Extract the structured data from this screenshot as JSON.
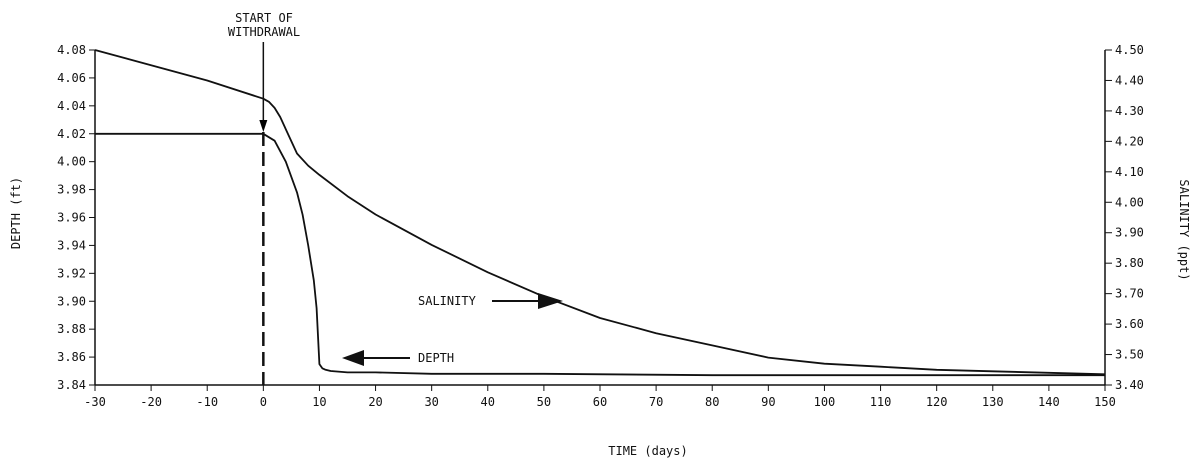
{
  "chart_data": {
    "type": "line",
    "title": "",
    "xlabel": "TIME (days)",
    "ylabel": "DEPTH (ft)",
    "y2label": "SALINITY (ppt)",
    "xlim": [
      -30,
      150
    ],
    "ylim": [
      3.84,
      4.08
    ],
    "y2lim": [
      3.4,
      4.5
    ],
    "x_ticks": [
      -30,
      -20,
      -10,
      0,
      10,
      20,
      30,
      40,
      50,
      60,
      70,
      80,
      90,
      100,
      110,
      120,
      130,
      140,
      150
    ],
    "y_ticks": [
      "3.84",
      "3.86",
      "3.88",
      "3.90",
      "3.92",
      "3.94",
      "3.96",
      "3.98",
      "4.00",
      "4.02",
      "4.04",
      "4.06",
      "4.08"
    ],
    "y2_ticks": [
      "3.40",
      "3.50",
      "3.60",
      "3.70",
      "3.80",
      "3.90",
      "4.00",
      "4.10",
      "4.20",
      "4.30",
      "4.40",
      "4.50"
    ],
    "grid": false,
    "series": [
      {
        "name": "DEPTH",
        "axis": "left",
        "x": [
          -30,
          -20,
          -10,
          0,
          2,
          4,
          6,
          7,
          8,
          9,
          9.5,
          10,
          10.5,
          11,
          12,
          15,
          20,
          30,
          50,
          80,
          100,
          150
        ],
        "y": [
          4.02,
          4.02,
          4.02,
          4.02,
          4.015,
          4.0,
          3.978,
          3.962,
          3.94,
          3.915,
          3.895,
          3.855,
          3.852,
          3.851,
          3.85,
          3.849,
          3.849,
          3.848,
          3.848,
          3.847,
          3.847,
          3.847
        ]
      },
      {
        "name": "SALINITY",
        "axis": "right",
        "x": [
          -30,
          -20,
          -10,
          0,
          1,
          2,
          3,
          4,
          5,
          6,
          8,
          10,
          15,
          20,
          30,
          40,
          50,
          60,
          70,
          80,
          90,
          100,
          110,
          120,
          130,
          140,
          150
        ],
        "y": [
          4.5,
          4.45,
          4.4,
          4.34,
          4.33,
          4.31,
          4.28,
          4.24,
          4.2,
          4.16,
          4.12,
          4.09,
          4.02,
          3.96,
          3.86,
          3.77,
          3.69,
          3.62,
          3.57,
          3.53,
          3.49,
          3.47,
          3.46,
          3.45,
          3.445,
          3.44,
          3.435
        ]
      }
    ],
    "annotations": {
      "withdrawal_line1": "START OF",
      "withdrawal_line2": "WITHDRAWAL",
      "withdrawal_x": 0,
      "salinity_label": "SALINITY",
      "depth_label": "DEPTH"
    }
  }
}
